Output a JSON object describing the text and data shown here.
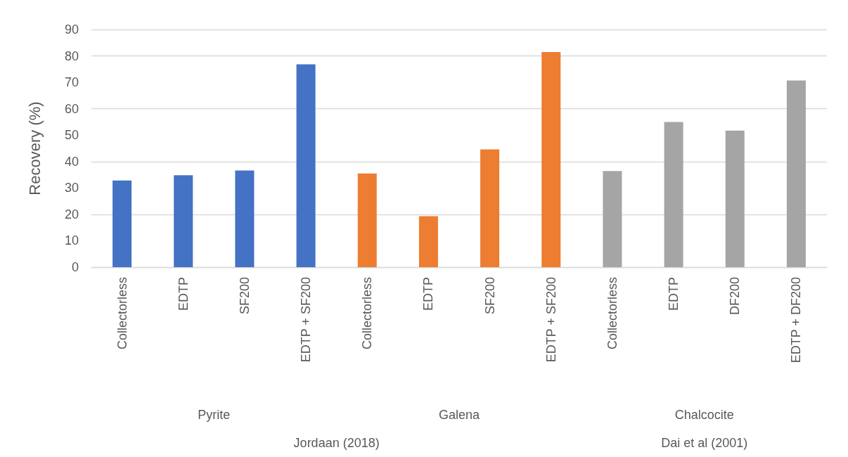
{
  "chart_data": {
    "type": "bar",
    "ylabel": "Recovery (%)",
    "categories": [
      "Collectorless",
      "EDTP",
      "SF200",
      "EDTP + SF200",
      "Collectorless",
      "EDTP",
      "SF200",
      "EDTP + SF200",
      "Collectorless",
      "EDTP",
      "DF200",
      "EDTP + DF200"
    ],
    "series": [
      {
        "color": "#4472c4",
        "values": [
          32.8,
          34.8,
          36.6,
          76.8,
          null,
          null,
          null,
          null,
          null,
          null,
          null,
          null
        ]
      },
      {
        "color": "#ed7d31",
        "values": [
          null,
          null,
          null,
          null,
          35.5,
          19.3,
          44.6,
          81.5,
          null,
          null,
          null,
          null
        ]
      },
      {
        "color": "#a5a5a5",
        "values": [
          null,
          null,
          null,
          null,
          null,
          null,
          null,
          null,
          36.4,
          55.0,
          51.7,
          70.7
        ]
      }
    ],
    "annotations": [
      "Pyrite",
      "Galena",
      "Chalcocite",
      "Jordaan (2018)",
      "Dai et al (2001)"
    ],
    "ylim": [
      0,
      90
    ],
    "yticks": [
      0,
      10,
      20,
      30,
      40,
      50,
      60,
      70,
      80,
      90
    ],
    "grid": "y"
  }
}
